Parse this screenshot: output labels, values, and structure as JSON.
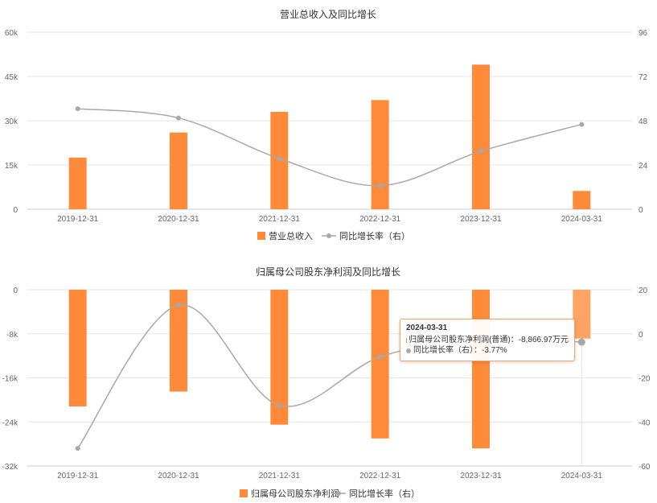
{
  "chart_data": [
    {
      "type": "bar",
      "title": "营业总收入及同比增长",
      "categories": [
        "2019-12-31",
        "2020-12-31",
        "2021-12-31",
        "2022-12-31",
        "2023-12-31",
        "2024-03-31"
      ],
      "left_ticks": [
        "60k",
        "45k",
        "30k",
        "15k",
        "0"
      ],
      "right_ticks": [
        "96",
        "72",
        "48",
        "24",
        "0"
      ],
      "ylim": [
        0,
        60000
      ],
      "y2lim": [
        0,
        96
      ],
      "series": [
        {
          "name": "营业总收入",
          "kind": "bar",
          "axis": "left",
          "color": "#ff8a3a",
          "values": [
            17500,
            26000,
            33000,
            37000,
            49000,
            6200
          ]
        },
        {
          "name": "同比增长率（右）",
          "kind": "line",
          "axis": "right",
          "color": "#a8a8a8",
          "values": [
            54.5,
            49.5,
            27.5,
            12.8,
            31.5,
            46.0
          ]
        }
      ],
      "legend_position": "bottom-center",
      "grid": true
    },
    {
      "type": "bar",
      "title": "归属母公司股东净利润及同比增长",
      "categories": [
        "2019-12-31",
        "2020-12-31",
        "2021-12-31",
        "2022-12-31",
        "2023-12-31",
        "2024-03-31"
      ],
      "left_ticks": [
        "0",
        "-8k",
        "-16k",
        "-24k",
        "-32k"
      ],
      "right_ticks": [
        "20",
        "0",
        "-20",
        "-40",
        "-60"
      ],
      "ylim": [
        -32000,
        0
      ],
      "y2lim": [
        -60,
        20
      ],
      "series": [
        {
          "name": "归属母公司股东净利润",
          "kind": "bar",
          "axis": "left",
          "color": "#ff8a3a",
          "values": [
            -21200,
            -18500,
            -24500,
            -27000,
            -28800,
            -8866.97
          ]
        },
        {
          "name": "同比增长率（右）",
          "kind": "line",
          "axis": "right",
          "color": "#a8a8a8",
          "values": [
            -52,
            13,
            -32.5,
            -10.5,
            -2,
            -3.77
          ]
        }
      ],
      "legend_position": "bottom-center",
      "grid": true,
      "highlight_index": 5,
      "tooltip": {
        "title": "2024-03-31",
        "rows": [
          {
            "text": "归属母公司股东净利润(普通)：-8,866.97万元",
            "color": "#ff8a3a"
          },
          {
            "text": "同比增长率（右）：-3.77%",
            "color": "#a8a8a8"
          }
        ]
      }
    }
  ]
}
